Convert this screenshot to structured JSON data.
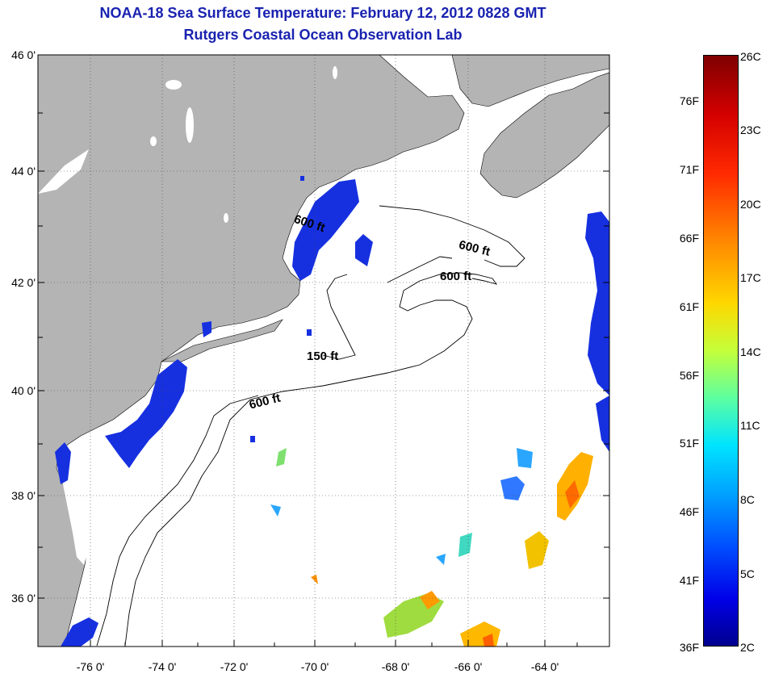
{
  "title": {
    "line1": "NOAA-18 Sea Surface Temperature:  February 12, 2012 0828 GMT",
    "line2": "Rutgers Coastal Ocean Observation Lab"
  },
  "axes": {
    "lat_labels": [
      "46 0'",
      "44 0'",
      "42 0'",
      "40 0'",
      "38 0'",
      "36 0'"
    ],
    "lon_labels": [
      "-76 0'",
      "-74 0'",
      "-72 0'",
      "-70 0'",
      "-68 0'",
      "-66 0'",
      "-64 0'"
    ]
  },
  "contours": {
    "label_600_a": "600 ft",
    "label_600_b": "600 ft",
    "label_600_c": "600 ft",
    "label_600_d": "600 ft",
    "label_150": "150 ft"
  },
  "colorbar": {
    "fahrenheit": [
      "76F",
      "71F",
      "66F",
      "61F",
      "56F",
      "51F",
      "46F",
      "41F",
      "36F"
    ],
    "celsius": [
      "26C",
      "23C",
      "20C",
      "17C",
      "14C",
      "11C",
      "8C",
      "5C",
      "2C"
    ]
  },
  "colors": {
    "land": "#b4b4b4",
    "ocean": "#ffffff",
    "title": "#1a23b0",
    "cold_water": "#1428e8"
  }
}
